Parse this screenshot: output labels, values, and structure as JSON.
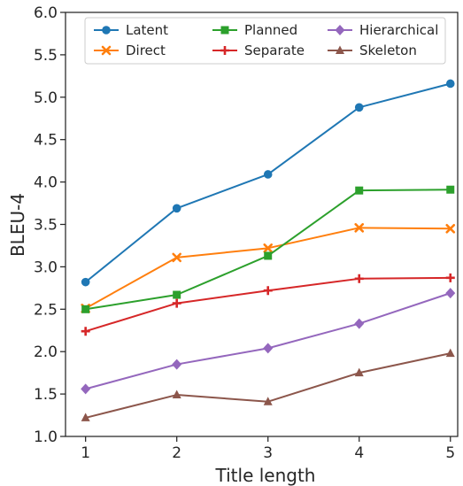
{
  "chart_data": {
    "type": "line",
    "xlabel": "Title length",
    "ylabel": "BLEU-4",
    "x": [
      1,
      2,
      3,
      4,
      5
    ],
    "xlim": [
      0.78,
      5.08
    ],
    "ylim": [
      1.0,
      6.0
    ],
    "x_ticks": [
      "1",
      "2",
      "3",
      "4",
      "5"
    ],
    "y_ticks": [
      "1.0",
      "1.5",
      "2.0",
      "2.5",
      "3.0",
      "3.5",
      "4.0",
      "4.5",
      "5.0",
      "5.5",
      "6.0"
    ],
    "grid": false,
    "legend_position": "top",
    "series": [
      {
        "name": "Latent",
        "color": "#1f77b4",
        "marker": "circle",
        "values": [
          2.82,
          3.69,
          4.09,
          4.88,
          5.16
        ]
      },
      {
        "name": "Direct",
        "color": "#ff7f0e",
        "marker": "x",
        "values": [
          2.51,
          3.11,
          3.22,
          3.46,
          3.45
        ]
      },
      {
        "name": "Planned",
        "color": "#2ca02c",
        "marker": "square",
        "values": [
          2.5,
          2.67,
          3.13,
          3.9,
          3.91
        ]
      },
      {
        "name": "Separate",
        "color": "#d62728",
        "marker": "plus",
        "values": [
          2.24,
          2.57,
          2.72,
          2.86,
          2.87
        ]
      },
      {
        "name": "Hierarchical",
        "color": "#9467bd",
        "marker": "diamond",
        "values": [
          1.56,
          1.85,
          2.04,
          2.33,
          2.69
        ]
      },
      {
        "name": "Skeleton",
        "color": "#8c564b",
        "marker": "triangle",
        "values": [
          1.22,
          1.49,
          1.41,
          1.75,
          1.98
        ]
      }
    ]
  }
}
